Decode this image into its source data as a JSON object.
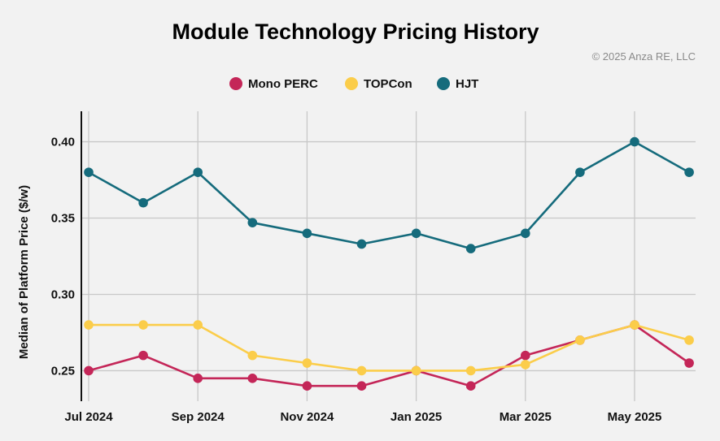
{
  "chart_data": {
    "type": "line",
    "title": "Module Technology Pricing History",
    "subtitle": "© 2025 Anza RE, LLC",
    "xlabel": "",
    "ylabel": "Median of Platform Price ($/w)",
    "x": [
      "Jul 2024",
      "Aug 2024",
      "Sep 2024",
      "Oct 2024",
      "Nov 2024",
      "Dec 2024",
      "Jan 2025",
      "Feb 2025",
      "Mar 2025",
      "Apr 2025",
      "May 2025",
      "Jun 2025"
    ],
    "x_tick_labels": [
      "Jul 2024",
      "Sep 2024",
      "Nov 2024",
      "Jan 2025",
      "Mar 2025",
      "May 2025"
    ],
    "ylim": [
      0.23,
      0.42
    ],
    "y_ticks": [
      0.25,
      0.3,
      0.35,
      0.4
    ],
    "y_tick_labels": [
      "0.25",
      "0.30",
      "0.35",
      "0.40"
    ],
    "grid": true,
    "legend_position": "top-center",
    "series": [
      {
        "name": "Mono PERC",
        "color": "#c42658",
        "values": [
          0.25,
          0.26,
          0.245,
          0.245,
          0.24,
          0.24,
          0.25,
          0.24,
          0.26,
          0.27,
          0.28,
          0.255
        ]
      },
      {
        "name": "TOPCon",
        "color": "#fbcd4a",
        "values": [
          0.28,
          0.28,
          0.28,
          0.26,
          0.255,
          0.25,
          0.25,
          0.25,
          0.254,
          0.27,
          0.28,
          0.27
        ]
      },
      {
        "name": "HJT",
        "color": "#156b7c",
        "values": [
          0.38,
          0.36,
          0.38,
          0.347,
          0.34,
          0.333,
          0.34,
          0.33,
          0.34,
          0.38,
          0.4,
          0.38
        ]
      }
    ]
  }
}
